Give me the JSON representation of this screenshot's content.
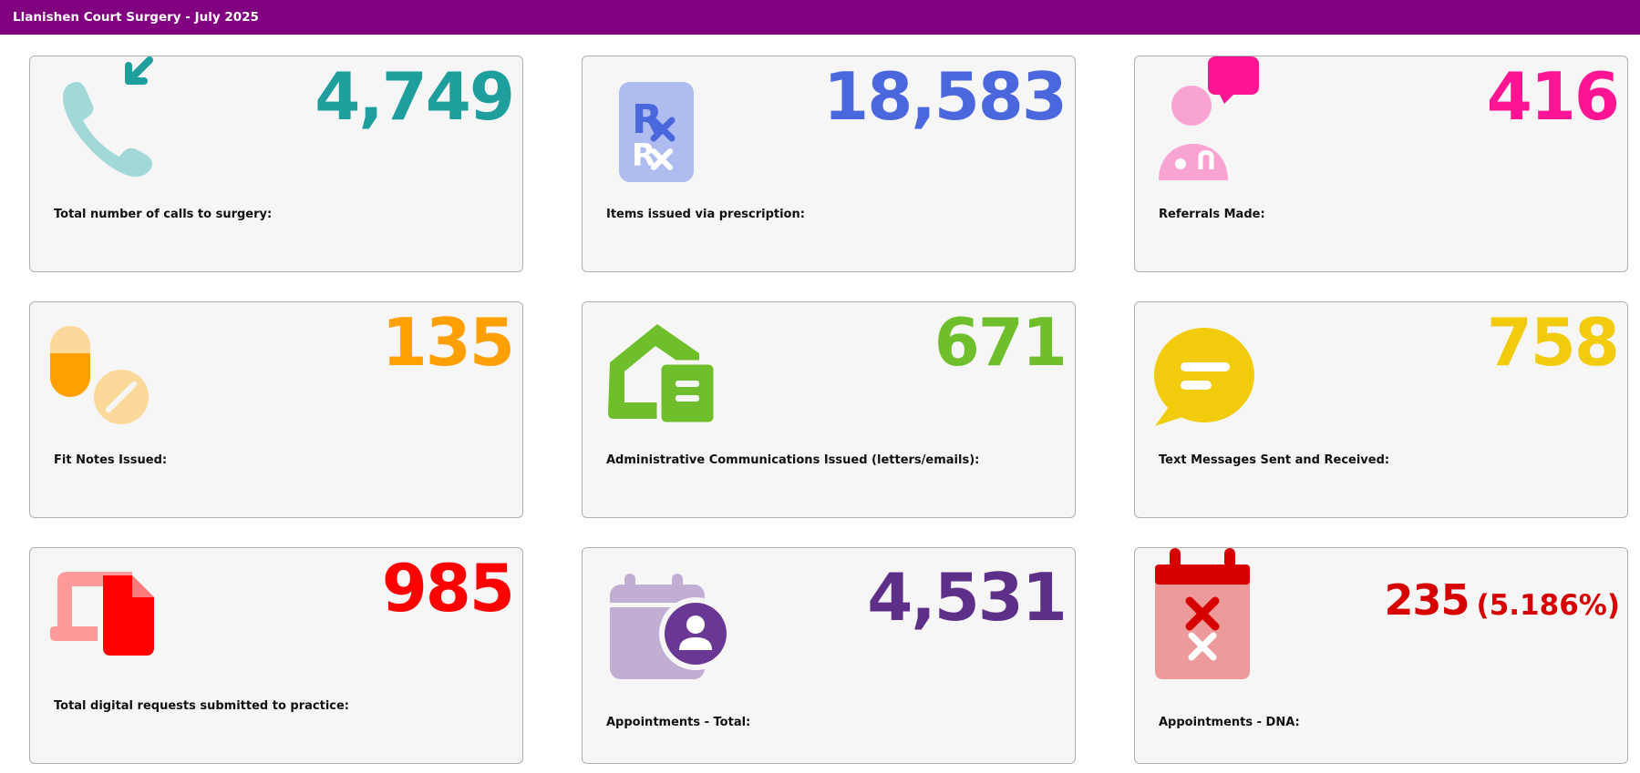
{
  "header": {
    "title": "Llanishen Court Surgery - July 2025"
  },
  "cards": [
    {
      "value": "4,749",
      "label": "Total number of calls to surgery:",
      "color": "#1f9e9e",
      "icon": "incoming-phone-call-icon"
    },
    {
      "value": "18,583",
      "label": "Items issued via prescription:",
      "color": "#4a67dd",
      "icon": "prescription-clipboard-icon"
    },
    {
      "value": "416",
      "label": "Referrals Made:",
      "color": "#ff1493",
      "icon": "doctor-chat-icon"
    },
    {
      "value": "135",
      "label": "Fit Notes Issued:",
      "color": "#ff9f00",
      "icon": "pills-icon"
    },
    {
      "value": "671",
      "label": "Administrative Communications Issued (letters/emails):",
      "color": "#6fbf2c",
      "icon": "mail-envelope-icon"
    },
    {
      "value": "758",
      "label": "Text Messages Sent and Received:",
      "color": "#f2cc0c",
      "icon": "speech-bubble-icon"
    },
    {
      "value": "985",
      "label": "Total digital requests submitted to practice:",
      "color": "#ff0000",
      "icon": "laptop-document-icon"
    },
    {
      "value": "4,531",
      "label": "Appointments - Total:",
      "color": "#5e2f88",
      "icon": "calendar-person-icon"
    },
    {
      "value": "235",
      "value_pct": "(5.186%)",
      "label": "Appointments - DNA:",
      "color": "#d60000",
      "icon": "calendar-cancel-icon"
    }
  ]
}
